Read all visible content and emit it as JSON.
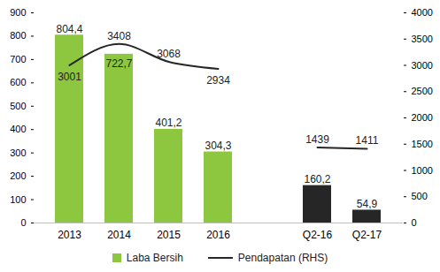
{
  "chart_data": {
    "type": "bar",
    "categories": [
      "2013",
      "2014",
      "2015",
      "2016",
      null,
      "Q2-16",
      "Q2-17"
    ],
    "series": [
      {
        "name": "Laba Bersih",
        "type": "bar",
        "color": "#8DC63F",
        "colors": [
          "#8DC63F",
          "#8DC63F",
          "#8DC63F",
          "#8DC63F",
          null,
          "#262626",
          "#262626"
        ],
        "values": [
          804.4,
          722.7,
          401.2,
          304.3,
          null,
          160.2,
          54.9
        ],
        "value_labels": [
          "804,4",
          "722,7",
          "401,2",
          "304,3",
          null,
          "160,2",
          "54,9"
        ]
      },
      {
        "name": "Pendapatan (RHS)",
        "type": "line",
        "axis": "y2",
        "color": "#262626",
        "line_style": "smooth",
        "values": [
          3001,
          3408,
          3068,
          2934,
          null,
          1439,
          1411
        ]
      }
    ],
    "ylim": [
      0,
      900
    ],
    "yticks": [
      0,
      100,
      200,
      300,
      400,
      500,
      600,
      700,
      800,
      900
    ],
    "y2lim": [
      0,
      4000
    ],
    "y2ticks": [
      0,
      500,
      1000,
      1500,
      2000,
      2500,
      3000,
      3500,
      4000
    ],
    "data_labels": true,
    "grid": false,
    "legend": "bottom"
  }
}
